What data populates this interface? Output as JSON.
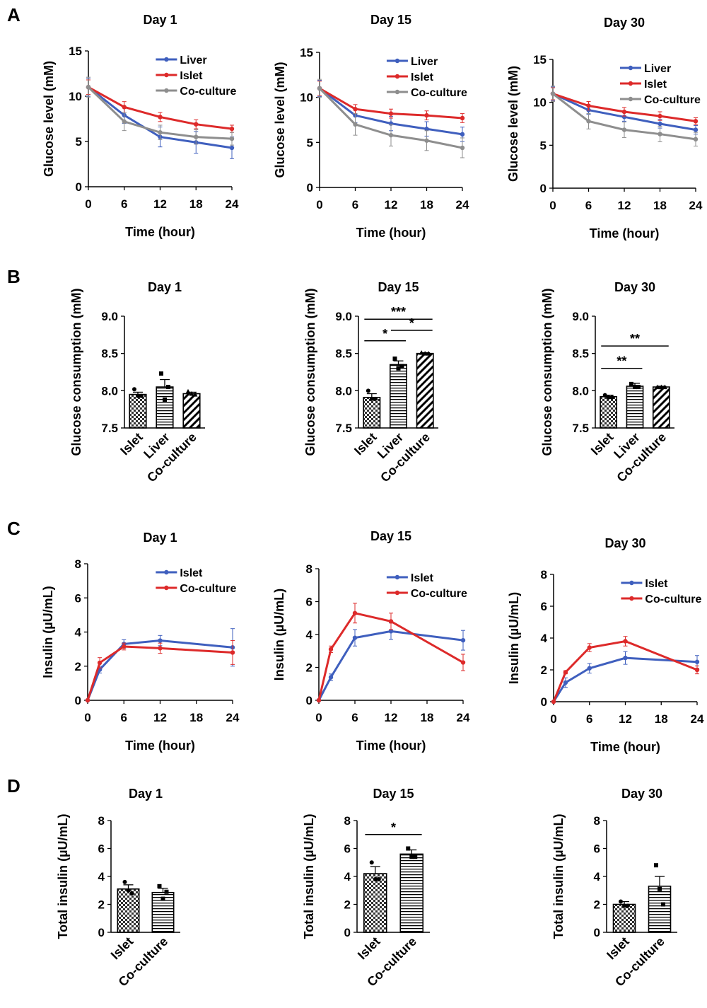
{
  "colors": {
    "liver": "#3f5fbe",
    "islet": "#dd2a2a",
    "coculture": "#8e8e8e",
    "axis": "#000000"
  },
  "panels": {
    "A": {
      "letter": "A",
      "xlabel": "Time (hour)",
      "ylabel": "Glucose level (mM)"
    },
    "B": {
      "letter": "B",
      "ylabel": "Glucose consumption (mM)"
    },
    "C": {
      "letter": "C",
      "xlabel": "Time (hour)",
      "ylabel": "Insulin  (µU/mL)"
    },
    "D": {
      "letter": "D",
      "ylabel": "Total insulin  (µU/mL)"
    }
  },
  "chart_data": [
    {
      "id": "A1",
      "panel": "A",
      "type": "line",
      "title": "Day 1",
      "xlabel": "Time (hour)",
      "ylabel": "Glucose level (mM)",
      "xlim": [
        0,
        24
      ],
      "ylim": [
        0,
        15
      ],
      "xticks": [
        0,
        6,
        12,
        18,
        24
      ],
      "yticks": [
        0,
        5,
        10,
        15
      ],
      "legend_position": "top-right",
      "ticklabels": "outside",
      "series": [
        {
          "name": "Liver",
          "color": "#3f5fbe",
          "x": [
            0,
            6,
            12,
            18,
            24
          ],
          "y": [
            11.0,
            7.9,
            5.5,
            4.9,
            4.3
          ],
          "err": [
            1.0,
            0.9,
            1.1,
            1.2,
            1.2
          ]
        },
        {
          "name": "Islet",
          "color": "#dd2a2a",
          "x": [
            0,
            6,
            12,
            18,
            24
          ],
          "y": [
            11.0,
            8.8,
            7.7,
            6.9,
            6.4
          ],
          "err": [
            0.8,
            0.6,
            0.5,
            0.5,
            0.4
          ]
        },
        {
          "name": "Co-culture",
          "color": "#8e8e8e",
          "x": [
            0,
            6,
            12,
            18,
            24
          ],
          "y": [
            11.0,
            7.2,
            6.0,
            5.5,
            5.3
          ],
          "err": [
            1.1,
            1.0,
            0.8,
            0.8,
            0.7
          ]
        }
      ]
    },
    {
      "id": "A2",
      "panel": "A",
      "type": "line",
      "title": "Day 15",
      "xlabel": "Time (hour)",
      "ylabel": "Glucose level (mM)",
      "xlim": [
        0,
        24
      ],
      "ylim": [
        0,
        15
      ],
      "xticks": [
        0,
        6,
        12,
        18,
        24
      ],
      "yticks": [
        0,
        5,
        10,
        15
      ],
      "legend_position": "top-right",
      "ticklabels": "outside",
      "series": [
        {
          "name": "Liver",
          "color": "#3f5fbe",
          "x": [
            0,
            6,
            12,
            18,
            24
          ],
          "y": [
            11.0,
            8.0,
            7.1,
            6.5,
            5.9
          ],
          "err": [
            0.9,
            0.8,
            0.8,
            0.8,
            0.8
          ]
        },
        {
          "name": "Islet",
          "color": "#dd2a2a",
          "x": [
            0,
            6,
            12,
            18,
            24
          ],
          "y": [
            11.0,
            8.7,
            8.2,
            8.0,
            7.7
          ],
          "err": [
            0.8,
            0.5,
            0.5,
            0.5,
            0.5
          ]
        },
        {
          "name": "Co-culture",
          "color": "#8e8e8e",
          "x": [
            0,
            6,
            12,
            18,
            24
          ],
          "y": [
            11.0,
            7.0,
            5.8,
            5.2,
            4.4
          ],
          "err": [
            1.0,
            1.2,
            1.2,
            1.1,
            1.1
          ]
        }
      ]
    },
    {
      "id": "A3",
      "panel": "A",
      "type": "line",
      "title": "Day 30",
      "xlabel": "Time (hour)",
      "ylabel": "Glucose level (mM)",
      "xlim": [
        0,
        24
      ],
      "ylim": [
        0,
        15
      ],
      "xticks": [
        0,
        6,
        12,
        18,
        24
      ],
      "yticks": [
        0,
        5,
        10,
        15
      ],
      "legend_position": "top-right",
      "ticklabels": "outside",
      "series": [
        {
          "name": "Liver",
          "color": "#3f5fbe",
          "x": [
            0,
            6,
            12,
            18,
            24
          ],
          "y": [
            11.0,
            9.1,
            8.3,
            7.5,
            6.8
          ],
          "err": [
            0.8,
            0.5,
            0.5,
            0.5,
            0.5
          ]
        },
        {
          "name": "Islet",
          "color": "#dd2a2a",
          "x": [
            0,
            6,
            12,
            18,
            24
          ],
          "y": [
            11.0,
            9.6,
            8.9,
            8.4,
            7.8
          ],
          "err": [
            0.7,
            0.5,
            0.5,
            0.5,
            0.4
          ]
        },
        {
          "name": "Co-culture",
          "color": "#8e8e8e",
          "x": [
            0,
            6,
            12,
            18,
            24
          ],
          "y": [
            11.0,
            7.8,
            6.8,
            6.3,
            5.7
          ],
          "err": [
            0.9,
            0.9,
            0.9,
            0.9,
            0.8
          ]
        }
      ]
    },
    {
      "id": "B1",
      "panel": "B",
      "type": "bar",
      "title": "Day 1",
      "ylabel": "Glucose consumption (mM)",
      "ylim": [
        7.5,
        9.0
      ],
      "yticks": [
        7.5,
        8.0,
        8.5,
        9.0
      ],
      "ytick_format": "0.0",
      "categories": [
        "Islet",
        "Liver",
        "Co-culture"
      ],
      "values": [
        7.95,
        8.05,
        7.96
      ],
      "errors": [
        0.03,
        0.1,
        0.02
      ],
      "points": [
        [
          8.02,
          7.93,
          7.93
        ],
        [
          8.23,
          7.88,
          8.05
        ],
        [
          7.99,
          7.96,
          7.95
        ]
      ],
      "patterns": [
        "checker",
        "hlines",
        "diag"
      ],
      "significance": []
    },
    {
      "id": "B2",
      "panel": "B",
      "type": "bar",
      "title": "Day 15",
      "ylabel": "Glucose consumption (mM)",
      "ylim": [
        7.5,
        9.0
      ],
      "yticks": [
        7.5,
        8.0,
        8.5,
        9.0
      ],
      "ytick_format": "0.0",
      "categories": [
        "Islet",
        "Liver",
        "Co-culture"
      ],
      "values": [
        7.91,
        8.35,
        8.5
      ],
      "errors": [
        0.05,
        0.05,
        0.01
      ],
      "points": [
        [
          8.0,
          7.89,
          7.89
        ],
        [
          8.43,
          8.3,
          8.33
        ],
        [
          8.51,
          8.5,
          8.5
        ]
      ],
      "patterns": [
        "checker",
        "hlines",
        "diag"
      ],
      "significance": [
        {
          "from": 0,
          "to": 2,
          "label": "***",
          "y": 8.96
        },
        {
          "from": 0,
          "to": 1,
          "label": "*",
          "y": 8.67
        },
        {
          "from": 1,
          "to": 2,
          "label": "*",
          "y": 8.81
        }
      ]
    },
    {
      "id": "B3",
      "panel": "B",
      "type": "bar",
      "title": "Day 30",
      "ylabel": "Glucose consumption (mM)",
      "ylim": [
        7.5,
        9.0
      ],
      "yticks": [
        7.5,
        8.0,
        8.5,
        9.0
      ],
      "ytick_format": "0.0",
      "categories": [
        "Islet",
        "Liver",
        "Co-culture"
      ],
      "values": [
        7.92,
        8.06,
        8.05
      ],
      "errors": [
        0.02,
        0.04,
        0.01
      ],
      "points": [
        [
          7.94,
          7.91,
          7.91
        ],
        [
          8.09,
          8.05,
          8.05
        ],
        [
          8.05,
          8.05,
          8.05
        ]
      ],
      "patterns": [
        "checker",
        "hlines",
        "diag"
      ],
      "significance": [
        {
          "from": 0,
          "to": 2,
          "label": "**",
          "y": 8.6
        },
        {
          "from": 0,
          "to": 1,
          "label": "**",
          "y": 8.3
        }
      ]
    },
    {
      "id": "C1",
      "panel": "C",
      "type": "line",
      "title": "Day 1",
      "xlabel": "Time (hour)",
      "ylabel": "Insulin  (µU/mL)",
      "xlim": [
        0,
        24
      ],
      "ylim": [
        0,
        8
      ],
      "xticks": [
        0,
        6,
        12,
        18,
        24
      ],
      "yticks": [
        0,
        2,
        4,
        6,
        8
      ],
      "legend_position": "top-right",
      "ticklabels": "outside",
      "series": [
        {
          "name": "Islet",
          "color": "#3f5fbe",
          "x": [
            0,
            2,
            6,
            12,
            24
          ],
          "y": [
            0.0,
            1.8,
            3.3,
            3.5,
            3.1
          ],
          "err": [
            0.0,
            0.2,
            0.25,
            0.3,
            1.1
          ]
        },
        {
          "name": "Co-culture",
          "color": "#dd2a2a",
          "x": [
            0,
            2,
            6,
            12,
            24
          ],
          "y": [
            0.0,
            2.2,
            3.15,
            3.05,
            2.8
          ],
          "err": [
            0.0,
            0.3,
            0.2,
            0.3,
            0.7
          ]
        }
      ]
    },
    {
      "id": "C2",
      "panel": "C",
      "type": "line",
      "title": "Day 15",
      "xlabel": "Time (hour)",
      "ylabel": "Insulin  (µU/mL)",
      "xlim": [
        0,
        24
      ],
      "ylim": [
        0,
        8
      ],
      "xticks": [
        0,
        6,
        12,
        18,
        24
      ],
      "yticks": [
        0,
        2,
        4,
        6,
        8
      ],
      "legend_position": "top-right",
      "ticklabels": "outside",
      "series": [
        {
          "name": "Islet",
          "color": "#3f5fbe",
          "x": [
            0,
            2,
            6,
            12,
            24
          ],
          "y": [
            0.0,
            1.4,
            3.8,
            4.2,
            3.65
          ],
          "err": [
            0.0,
            0.2,
            0.5,
            0.5,
            0.6
          ]
        },
        {
          "name": "Co-culture",
          "color": "#dd2a2a",
          "x": [
            0,
            2,
            6,
            12,
            24
          ],
          "y": [
            0.0,
            3.1,
            5.3,
            4.8,
            2.3
          ],
          "err": [
            0.0,
            0.2,
            0.6,
            0.5,
            0.5
          ]
        }
      ]
    },
    {
      "id": "C3",
      "panel": "C",
      "type": "line",
      "title": "Day 30",
      "xlabel": "Time (hour)",
      "ylabel": "Insulin  (µU/mL)",
      "xlim": [
        0,
        24
      ],
      "ylim": [
        0,
        8
      ],
      "xticks": [
        0,
        6,
        12,
        18,
        24
      ],
      "yticks": [
        0,
        2,
        4,
        6,
        8
      ],
      "legend_position": "top-right",
      "ticklabels": "outside",
      "series": [
        {
          "name": "Islet",
          "color": "#3f5fbe",
          "x": [
            0,
            2,
            6,
            12,
            24
          ],
          "y": [
            0.0,
            1.2,
            2.1,
            2.75,
            2.5
          ],
          "err": [
            0.0,
            0.3,
            0.3,
            0.4,
            0.4
          ]
        },
        {
          "name": "Co-culture",
          "color": "#dd2a2a",
          "x": [
            0,
            2,
            6,
            12,
            24
          ],
          "y": [
            0.0,
            1.85,
            3.4,
            3.8,
            2.0
          ],
          "err": [
            0.0,
            0.1,
            0.25,
            0.3,
            0.25
          ]
        }
      ]
    },
    {
      "id": "D1",
      "panel": "D",
      "type": "bar",
      "title": "Day 1",
      "ylabel": "Total insulin  (µU/mL)",
      "ylim": [
        0,
        8
      ],
      "yticks": [
        0,
        2,
        4,
        6,
        8
      ],
      "ytick_format": "0",
      "categories": [
        "Islet",
        "Co-culture"
      ],
      "values": [
        3.1,
        2.85
      ],
      "errors": [
        0.3,
        0.3
      ],
      "points": [
        [
          3.6,
          3.0,
          2.8
        ],
        [
          3.3,
          2.4,
          2.9
        ]
      ],
      "patterns": [
        "checker",
        "hlines"
      ],
      "significance": []
    },
    {
      "id": "D2",
      "panel": "D",
      "type": "bar",
      "title": "Day 15",
      "ylabel": "Total insulin  (µU/mL)",
      "ylim": [
        0,
        8
      ],
      "yticks": [
        0,
        2,
        4,
        6,
        8
      ],
      "ytick_format": "0",
      "categories": [
        "Islet",
        "Co-culture"
      ],
      "values": [
        4.2,
        5.6
      ],
      "errors": [
        0.5,
        0.3
      ],
      "points": [
        [
          5.0,
          3.8,
          3.8
        ],
        [
          6.0,
          5.4,
          5.4
        ]
      ],
      "patterns": [
        "checker",
        "hlines"
      ],
      "significance": [
        {
          "from": 0,
          "to": 1,
          "label": "*",
          "y": 7.0
        }
      ]
    },
    {
      "id": "D3",
      "panel": "D",
      "type": "bar",
      "title": "Day 30",
      "ylabel": "Total insulin  (µU/mL)",
      "ylim": [
        0,
        8
      ],
      "yticks": [
        0,
        2,
        4,
        6,
        8
      ],
      "ytick_format": "0",
      "categories": [
        "Islet",
        "Co-culture"
      ],
      "values": [
        2.0,
        3.3
      ],
      "errors": [
        0.2,
        0.7
      ],
      "points": [
        [
          2.2,
          1.9,
          1.9
        ],
        [
          4.8,
          3.1,
          2.0
        ]
      ],
      "patterns": [
        "checker",
        "hlines"
      ],
      "significance": []
    }
  ]
}
